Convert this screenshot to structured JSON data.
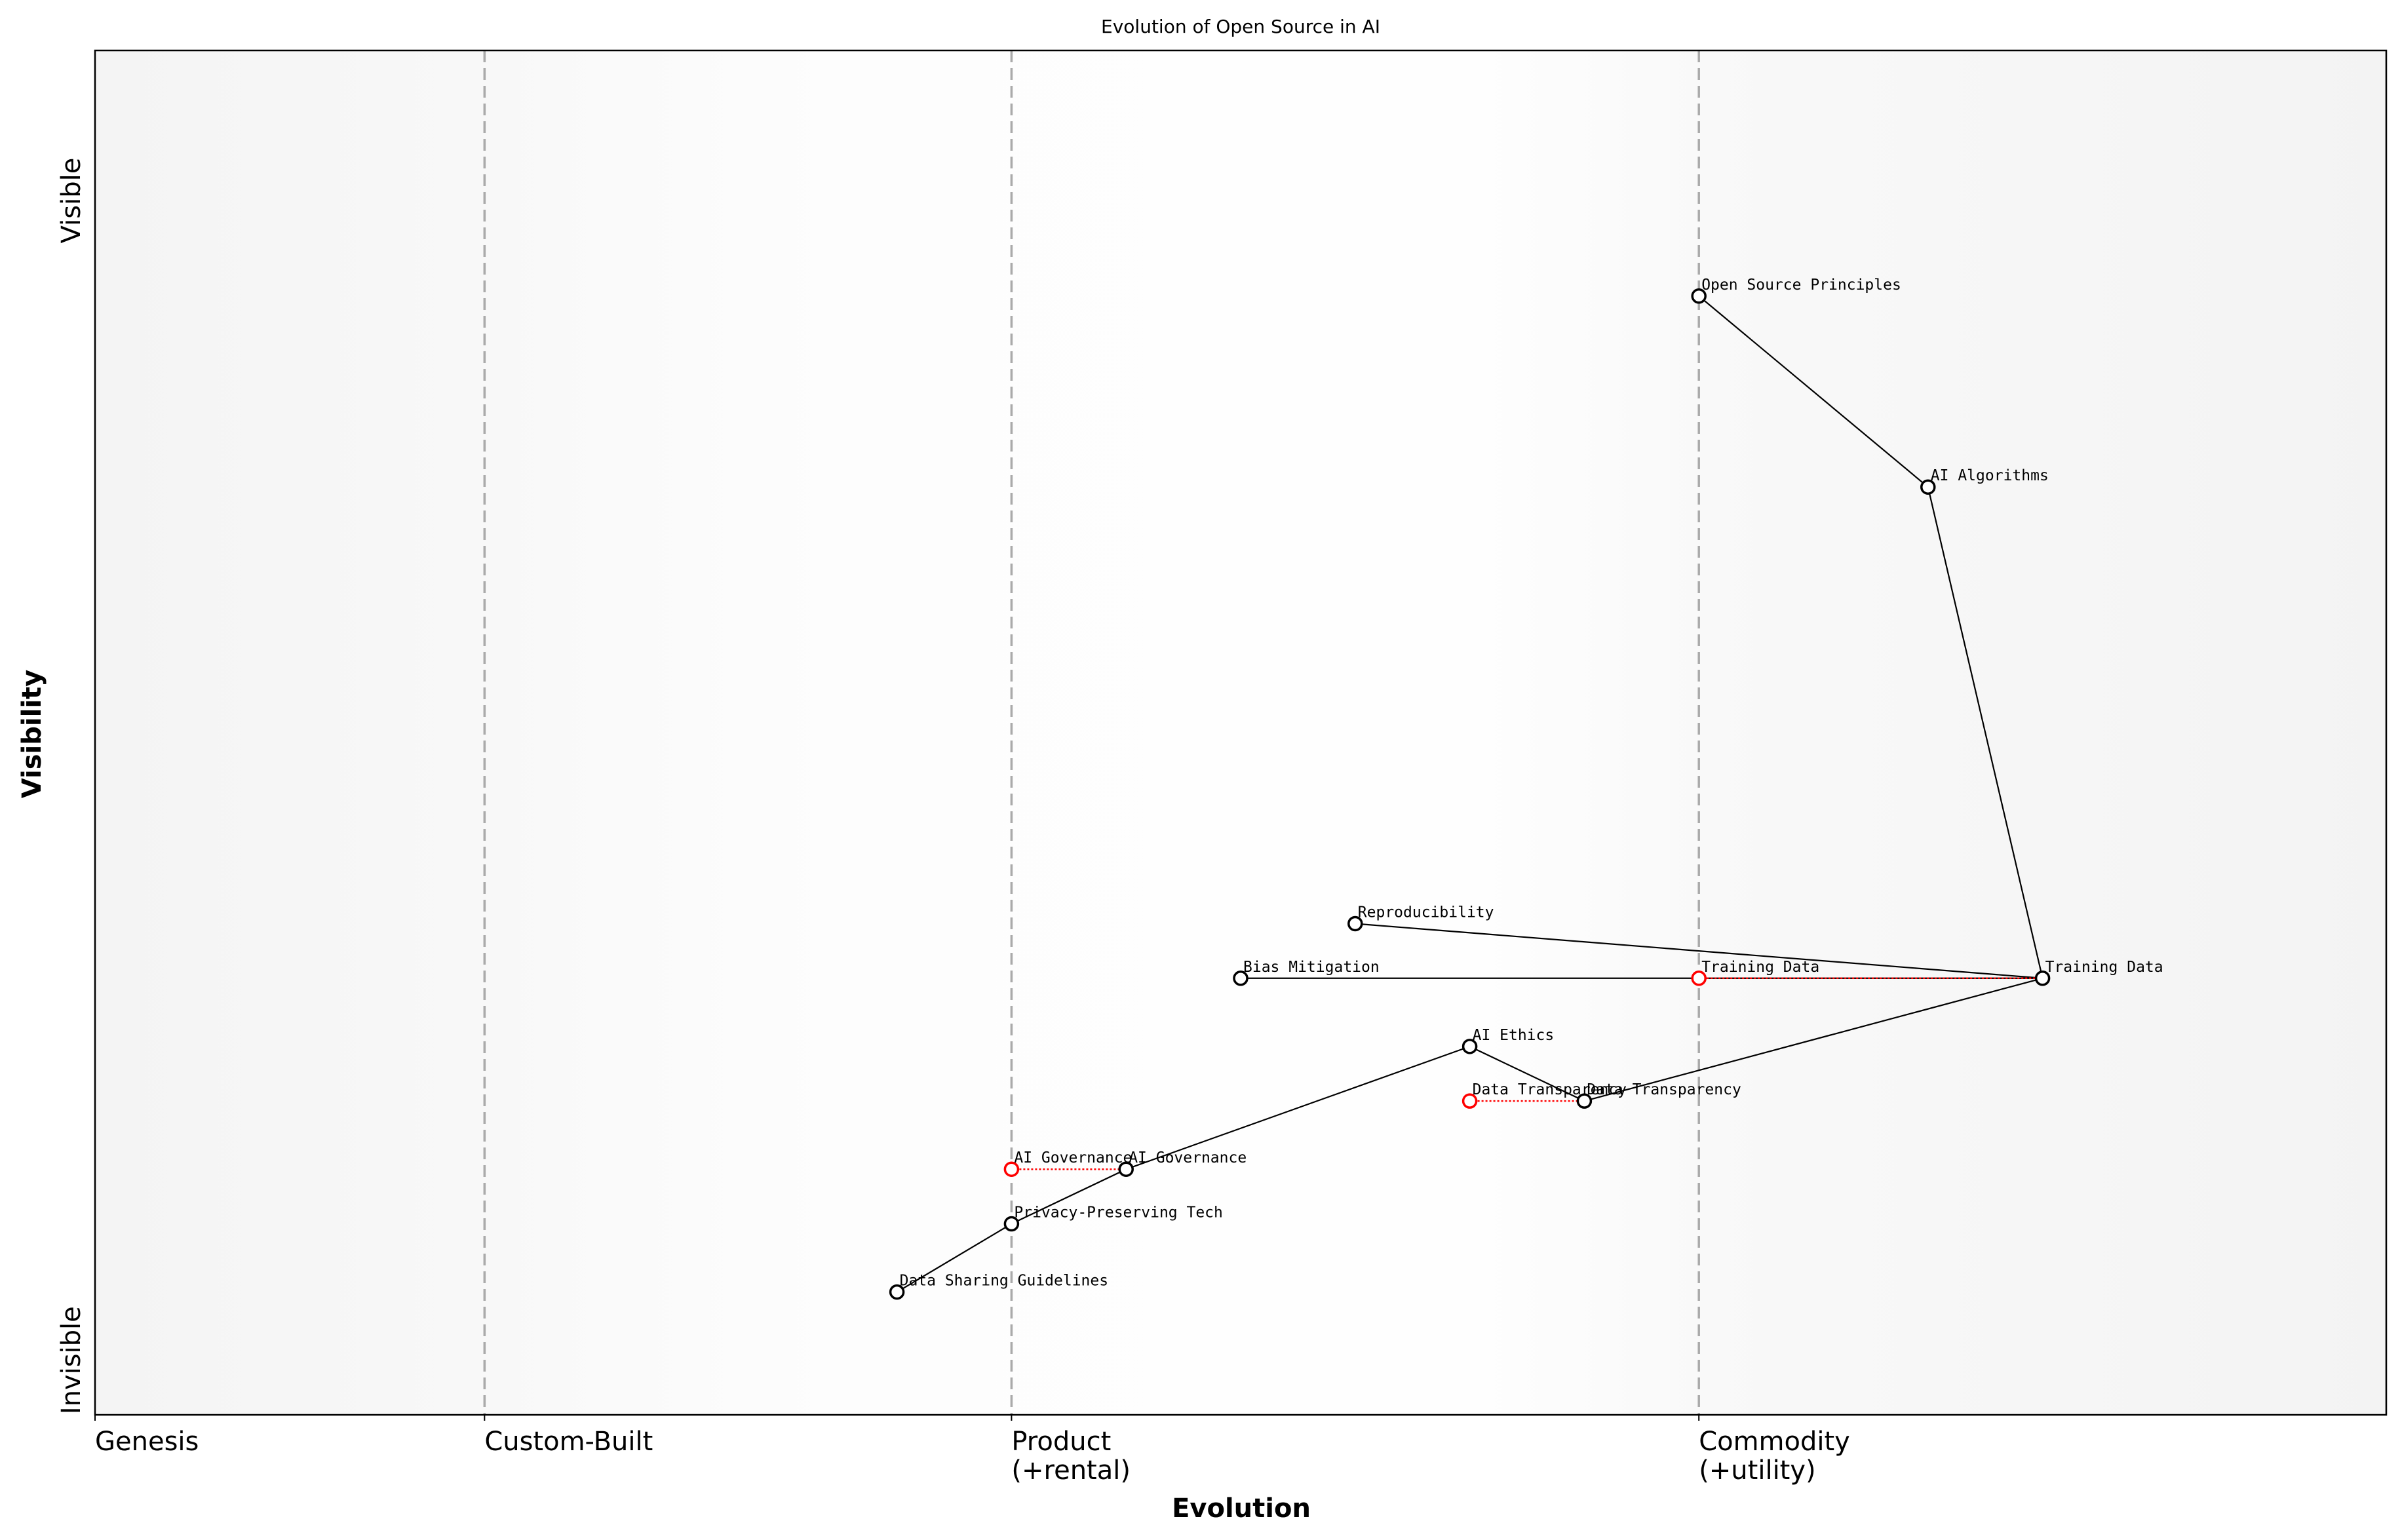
{
  "chart_data": {
    "type": "scatter",
    "title": "Evolution of Open Source in AI",
    "xlabel": "Evolution",
    "ylabel": "Visibility",
    "xlim": [
      0,
      1
    ],
    "ylim": [
      0,
      1
    ],
    "grid": false,
    "y_tick_labels": [
      {
        "label": "Visible",
        "value": 0.89
      },
      {
        "label": "Invisible",
        "value": 0.04
      }
    ],
    "stages": [
      {
        "label": "Genesis",
        "sublabel": "",
        "x": 0.0,
        "divider": false
      },
      {
        "label": "Custom-Built",
        "sublabel": "",
        "x": 0.17,
        "divider": true
      },
      {
        "label": "Product",
        "sublabel": "(+rental)",
        "x": 0.4,
        "divider": true
      },
      {
        "label": "Commodity",
        "sublabel": "(+utility)",
        "x": 0.7,
        "divider": true
      }
    ],
    "components": [
      {
        "name": "Open Source Principles",
        "x": 0.7,
        "y": 0.82
      },
      {
        "name": "AI Algorithms",
        "x": 0.8,
        "y": 0.68
      },
      {
        "name": "Training Data",
        "x": 0.85,
        "y": 0.32
      },
      {
        "name": "Reproducibility",
        "x": 0.55,
        "y": 0.36
      },
      {
        "name": "Bias Mitigation",
        "x": 0.5,
        "y": 0.32
      },
      {
        "name": "AI Ethics",
        "x": 0.6,
        "y": 0.27
      },
      {
        "name": "Data Transparency",
        "x": 0.65,
        "y": 0.23
      },
      {
        "name": "AI Governance",
        "x": 0.45,
        "y": 0.18
      },
      {
        "name": "Privacy-Preserving Tech",
        "x": 0.4,
        "y": 0.14
      },
      {
        "name": "Data Sharing Guidelines",
        "x": 0.35,
        "y": 0.09
      }
    ],
    "links": [
      [
        "Open Source Principles",
        "AI Algorithms"
      ],
      [
        "AI Algorithms",
        "Training Data"
      ],
      [
        "Training Data",
        "Reproducibility"
      ],
      [
        "Training Data",
        "Bias Mitigation"
      ],
      [
        "Training Data",
        "Data Transparency"
      ],
      [
        "Data Transparency",
        "AI Ethics"
      ],
      [
        "AI Ethics",
        "AI Governance"
      ],
      [
        "AI Governance",
        "Privacy-Preserving Tech"
      ],
      [
        "Privacy-Preserving Tech",
        "Data Sharing Guidelines"
      ]
    ],
    "evolutions": [
      {
        "name": "Training Data",
        "from_x": 0.7,
        "to_x": 0.85,
        "y": 0.32
      },
      {
        "name": "Data Transparency",
        "from_x": 0.6,
        "to_x": 0.65,
        "y": 0.23
      },
      {
        "name": "AI Governance",
        "from_x": 0.4,
        "to_x": 0.45,
        "y": 0.18
      }
    ],
    "colors": {
      "component": "#000000",
      "evolution": "#ff0000",
      "divider": "#aaaaaa"
    }
  }
}
